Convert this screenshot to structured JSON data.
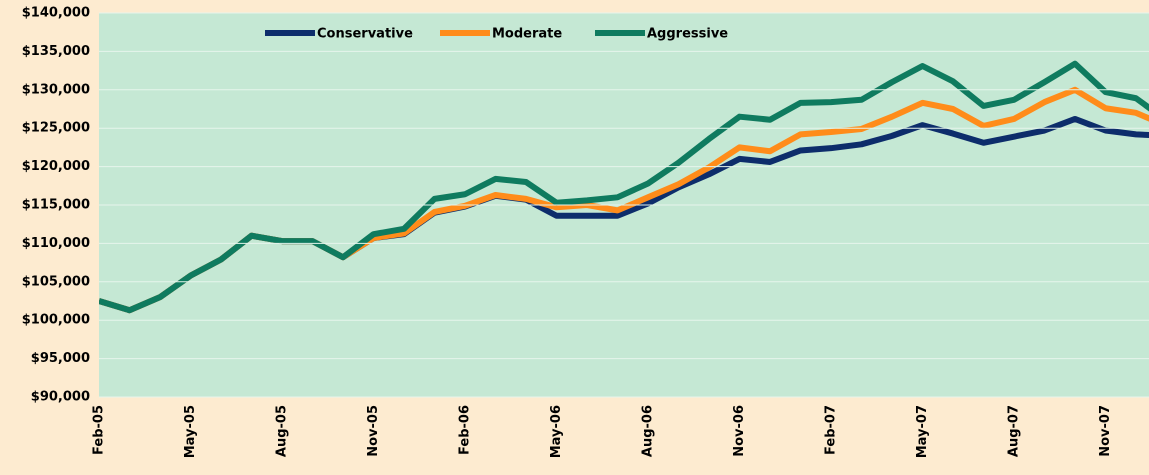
{
  "chart_data": {
    "type": "line",
    "categories": [
      "Feb-05",
      null,
      null,
      "May-05",
      null,
      null,
      "Aug-05",
      null,
      null,
      "Nov-05",
      null,
      null,
      "Feb-06",
      null,
      null,
      "May-06",
      null,
      null,
      "Aug-06",
      null,
      null,
      "Nov-06",
      null,
      null,
      "Feb-07",
      null,
      null,
      "May-07",
      null,
      null,
      "Aug-07",
      null,
      null,
      "Nov-07",
      null,
      null
    ],
    "series": [
      {
        "name": "Conservative",
        "color": "#0d2d6b",
        "values": [
          102500,
          101300,
          103000,
          105800,
          107900,
          111000,
          110300,
          110300,
          108200,
          110700,
          111200,
          114000,
          114800,
          116200,
          115700,
          113600,
          113600,
          113600,
          115200,
          117300,
          119000,
          121000,
          120600,
          122100,
          122400,
          122900,
          124000,
          125400,
          124300,
          123100,
          123900,
          124700,
          126200,
          124700,
          124200,
          124000
        ]
      },
      {
        "name": "Moderate",
        "color": "#ff8c1a",
        "values": [
          102500,
          101300,
          103000,
          105800,
          107900,
          111000,
          110300,
          110300,
          108200,
          110700,
          111300,
          114100,
          114900,
          116300,
          115800,
          114700,
          115000,
          114300,
          116000,
          117700,
          119900,
          122500,
          122000,
          124200,
          124500,
          124900,
          126500,
          128300,
          127500,
          125300,
          126200,
          128400,
          130000,
          127600,
          127000,
          125300
        ]
      },
      {
        "name": "Aggressive",
        "color": "#0f7b5f",
        "values": [
          102500,
          101300,
          103000,
          105800,
          107900,
          111000,
          110300,
          110300,
          108200,
          111200,
          111900,
          115800,
          116400,
          118400,
          118000,
          115300,
          115600,
          116000,
          117800,
          120500,
          123600,
          126500,
          126100,
          128300,
          128400,
          128700,
          131000,
          133100,
          131100,
          127900,
          128700,
          131000,
          133400,
          129700,
          128900,
          126000
        ]
      }
    ],
    "ylim": [
      90000,
      140000
    ],
    "yticks": [
      {
        "value": 90000,
        "label": "$90,000"
      },
      {
        "value": 95000,
        "label": "$95,000"
      },
      {
        "value": 100000,
        "label": "$100,000"
      },
      {
        "value": 105000,
        "label": "$105,000"
      },
      {
        "value": 110000,
        "label": "$110,000"
      },
      {
        "value": 115000,
        "label": "$115,000"
      },
      {
        "value": 120000,
        "label": "$120,000"
      },
      {
        "value": 125000,
        "label": "$125,000"
      },
      {
        "value": 130000,
        "label": "$130,000"
      },
      {
        "value": 135000,
        "label": "$135,000"
      },
      {
        "value": 140000,
        "label": "$140,000"
      }
    ],
    "grid": true,
    "legend": "top"
  }
}
